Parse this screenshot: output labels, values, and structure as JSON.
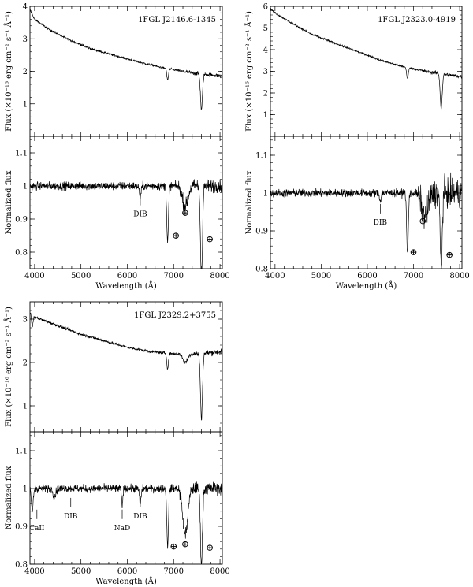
{
  "chart_data": [
    {
      "type": "line",
      "object": "1FGL J2146.6-1345",
      "xlabel": "Wavelength (Å)",
      "xlim": [
        3900,
        8050
      ],
      "xticks": [
        "4000",
        "5000",
        "6000",
        "7000",
        "8000"
      ],
      "flux": {
        "ylabel": "Flux (×10⁻¹⁶ erg cm⁻² s⁻¹ Å⁻¹)",
        "ylim": [
          0,
          4
        ],
        "yticks": [
          "1",
          "2",
          "3",
          "4"
        ],
        "continuum": [
          [
            3900,
            3.9
          ],
          [
            4000,
            3.6
          ],
          [
            4300,
            3.3
          ],
          [
            4700,
            3.0
          ],
          [
            5200,
            2.7
          ],
          [
            5700,
            2.5
          ],
          [
            6200,
            2.3
          ],
          [
            6800,
            2.1
          ],
          [
            7400,
            1.95
          ],
          [
            8050,
            1.85
          ]
        ],
        "noise": 0.03,
        "absorptions": [
          [
            6870,
            0.35,
            18
          ],
          [
            7600,
            1.1,
            22
          ]
        ]
      },
      "norm": {
        "ylabel": "Normalized flux",
        "ylim": [
          0.75,
          1.15
        ],
        "yticks": [
          "0.8",
          "0.9",
          "1",
          "1.1"
        ],
        "noise": 0.012,
        "absorptions": [
          [
            6280,
            0.03,
            20
          ],
          [
            6870,
            0.17,
            18
          ],
          [
            7250,
            0.06,
            60
          ],
          [
            7600,
            0.28,
            22
          ]
        ]
      },
      "annotations": [
        {
          "label": "DIB",
          "x": 6280,
          "y": 0.908
        },
        {
          "label": "⊕",
          "x": 7050,
          "y": 0.84
        },
        {
          "label": "⊕",
          "x": 7250,
          "y": 0.91
        },
        {
          "label": "⊕",
          "x": 7780,
          "y": 0.83
        }
      ]
    },
    {
      "type": "line",
      "object": "1FGL J2323.0-4919",
      "xlabel": "Wavelength (Å)",
      "xlim": [
        3900,
        8050
      ],
      "xticks": [
        "4000",
        "5000",
        "6000",
        "7000",
        "8000"
      ],
      "flux": {
        "ylabel": "Flux (×10⁻¹⁶ erg cm⁻² s⁻¹ Å⁻¹)",
        "ylim": [
          0,
          6
        ],
        "yticks": [
          "1",
          "2",
          "3",
          "4",
          "5",
          "6"
        ],
        "continuum": [
          [
            3900,
            5.9
          ],
          [
            4000,
            5.7
          ],
          [
            4300,
            5.3
          ],
          [
            4800,
            4.7
          ],
          [
            5300,
            4.3
          ],
          [
            5800,
            3.9
          ],
          [
            6300,
            3.5
          ],
          [
            6800,
            3.2
          ],
          [
            7400,
            2.95
          ],
          [
            8050,
            2.75
          ]
        ],
        "noise": 0.04,
        "absorptions": [
          [
            6870,
            0.5,
            18
          ],
          [
            7600,
            1.6,
            22
          ]
        ]
      },
      "norm": {
        "ylabel": "Normalized flux",
        "ylim": [
          0.8,
          1.15
        ],
        "yticks": [
          "0.8",
          "0.9",
          "1",
          "1.1"
        ],
        "noise": 0.01,
        "absorptions": [
          [
            6280,
            0.02,
            18
          ],
          [
            6870,
            0.16,
            18
          ],
          [
            7250,
            0.06,
            70
          ],
          [
            7600,
            0.2,
            22
          ]
        ]
      },
      "annotations": [
        {
          "label": "DIB",
          "x": 6280,
          "y": 0.917
        },
        {
          "label": "⊕",
          "x": 7000,
          "y": 0.835
        },
        {
          "label": "⊕",
          "x": 7200,
          "y": 0.918
        },
        {
          "label": "⊕",
          "x": 7780,
          "y": 0.828
        }
      ]
    },
    {
      "type": "line",
      "object": "1FGL J2329.2+3755",
      "xlabel": "Wavelength (Å)",
      "xlim": [
        3900,
        8050
      ],
      "xticks": [
        "4000",
        "5000",
        "6000",
        "7000",
        "8000"
      ],
      "flux": {
        "ylabel": "Flux (×10⁻¹⁶ erg cm⁻² s⁻¹ Å⁻¹)",
        "ylim": [
          0.4,
          3.4
        ],
        "yticks": [
          "1",
          "2",
          "3"
        ],
        "continuum": [
          [
            3900,
            3.15
          ],
          [
            4000,
            3.05
          ],
          [
            4500,
            2.85
          ],
          [
            5000,
            2.65
          ],
          [
            5500,
            2.5
          ],
          [
            6000,
            2.35
          ],
          [
            6500,
            2.25
          ],
          [
            7000,
            2.2
          ],
          [
            7500,
            2.2
          ],
          [
            8050,
            2.25
          ]
        ],
        "noise": 0.03,
        "absorptions": [
          [
            3950,
            0.3,
            15
          ],
          [
            6870,
            0.35,
            18
          ],
          [
            7250,
            0.2,
            50
          ],
          [
            7600,
            1.5,
            22
          ]
        ]
      },
      "norm": {
        "ylabel": "Normalized flux",
        "ylim": [
          0.8,
          1.15
        ],
        "yticks": [
          "0.8",
          "0.9",
          "1",
          "1.1"
        ],
        "noise": 0.01,
        "absorptions": [
          [
            3950,
            0.06,
            20
          ],
          [
            4430,
            0.02,
            30
          ],
          [
            5890,
            0.05,
            12
          ],
          [
            6280,
            0.04,
            18
          ],
          [
            6870,
            0.15,
            18
          ],
          [
            7250,
            0.12,
            55
          ],
          [
            7600,
            0.2,
            22
          ]
        ]
      },
      "annotations": [
        {
          "label": "CaII",
          "x": 4050,
          "y": 0.89
        },
        {
          "label": "DIB",
          "x": 4780,
          "y": 0.921
        },
        {
          "label": "NaD",
          "x": 5890,
          "y": 0.89
        },
        {
          "label": "DIB",
          "x": 6280,
          "y": 0.921
        },
        {
          "label": "⊕",
          "x": 7000,
          "y": 0.839
        },
        {
          "label": "⊕",
          "x": 7250,
          "y": 0.845
        },
        {
          "label": "⊕",
          "x": 7780,
          "y": 0.835
        }
      ]
    }
  ]
}
